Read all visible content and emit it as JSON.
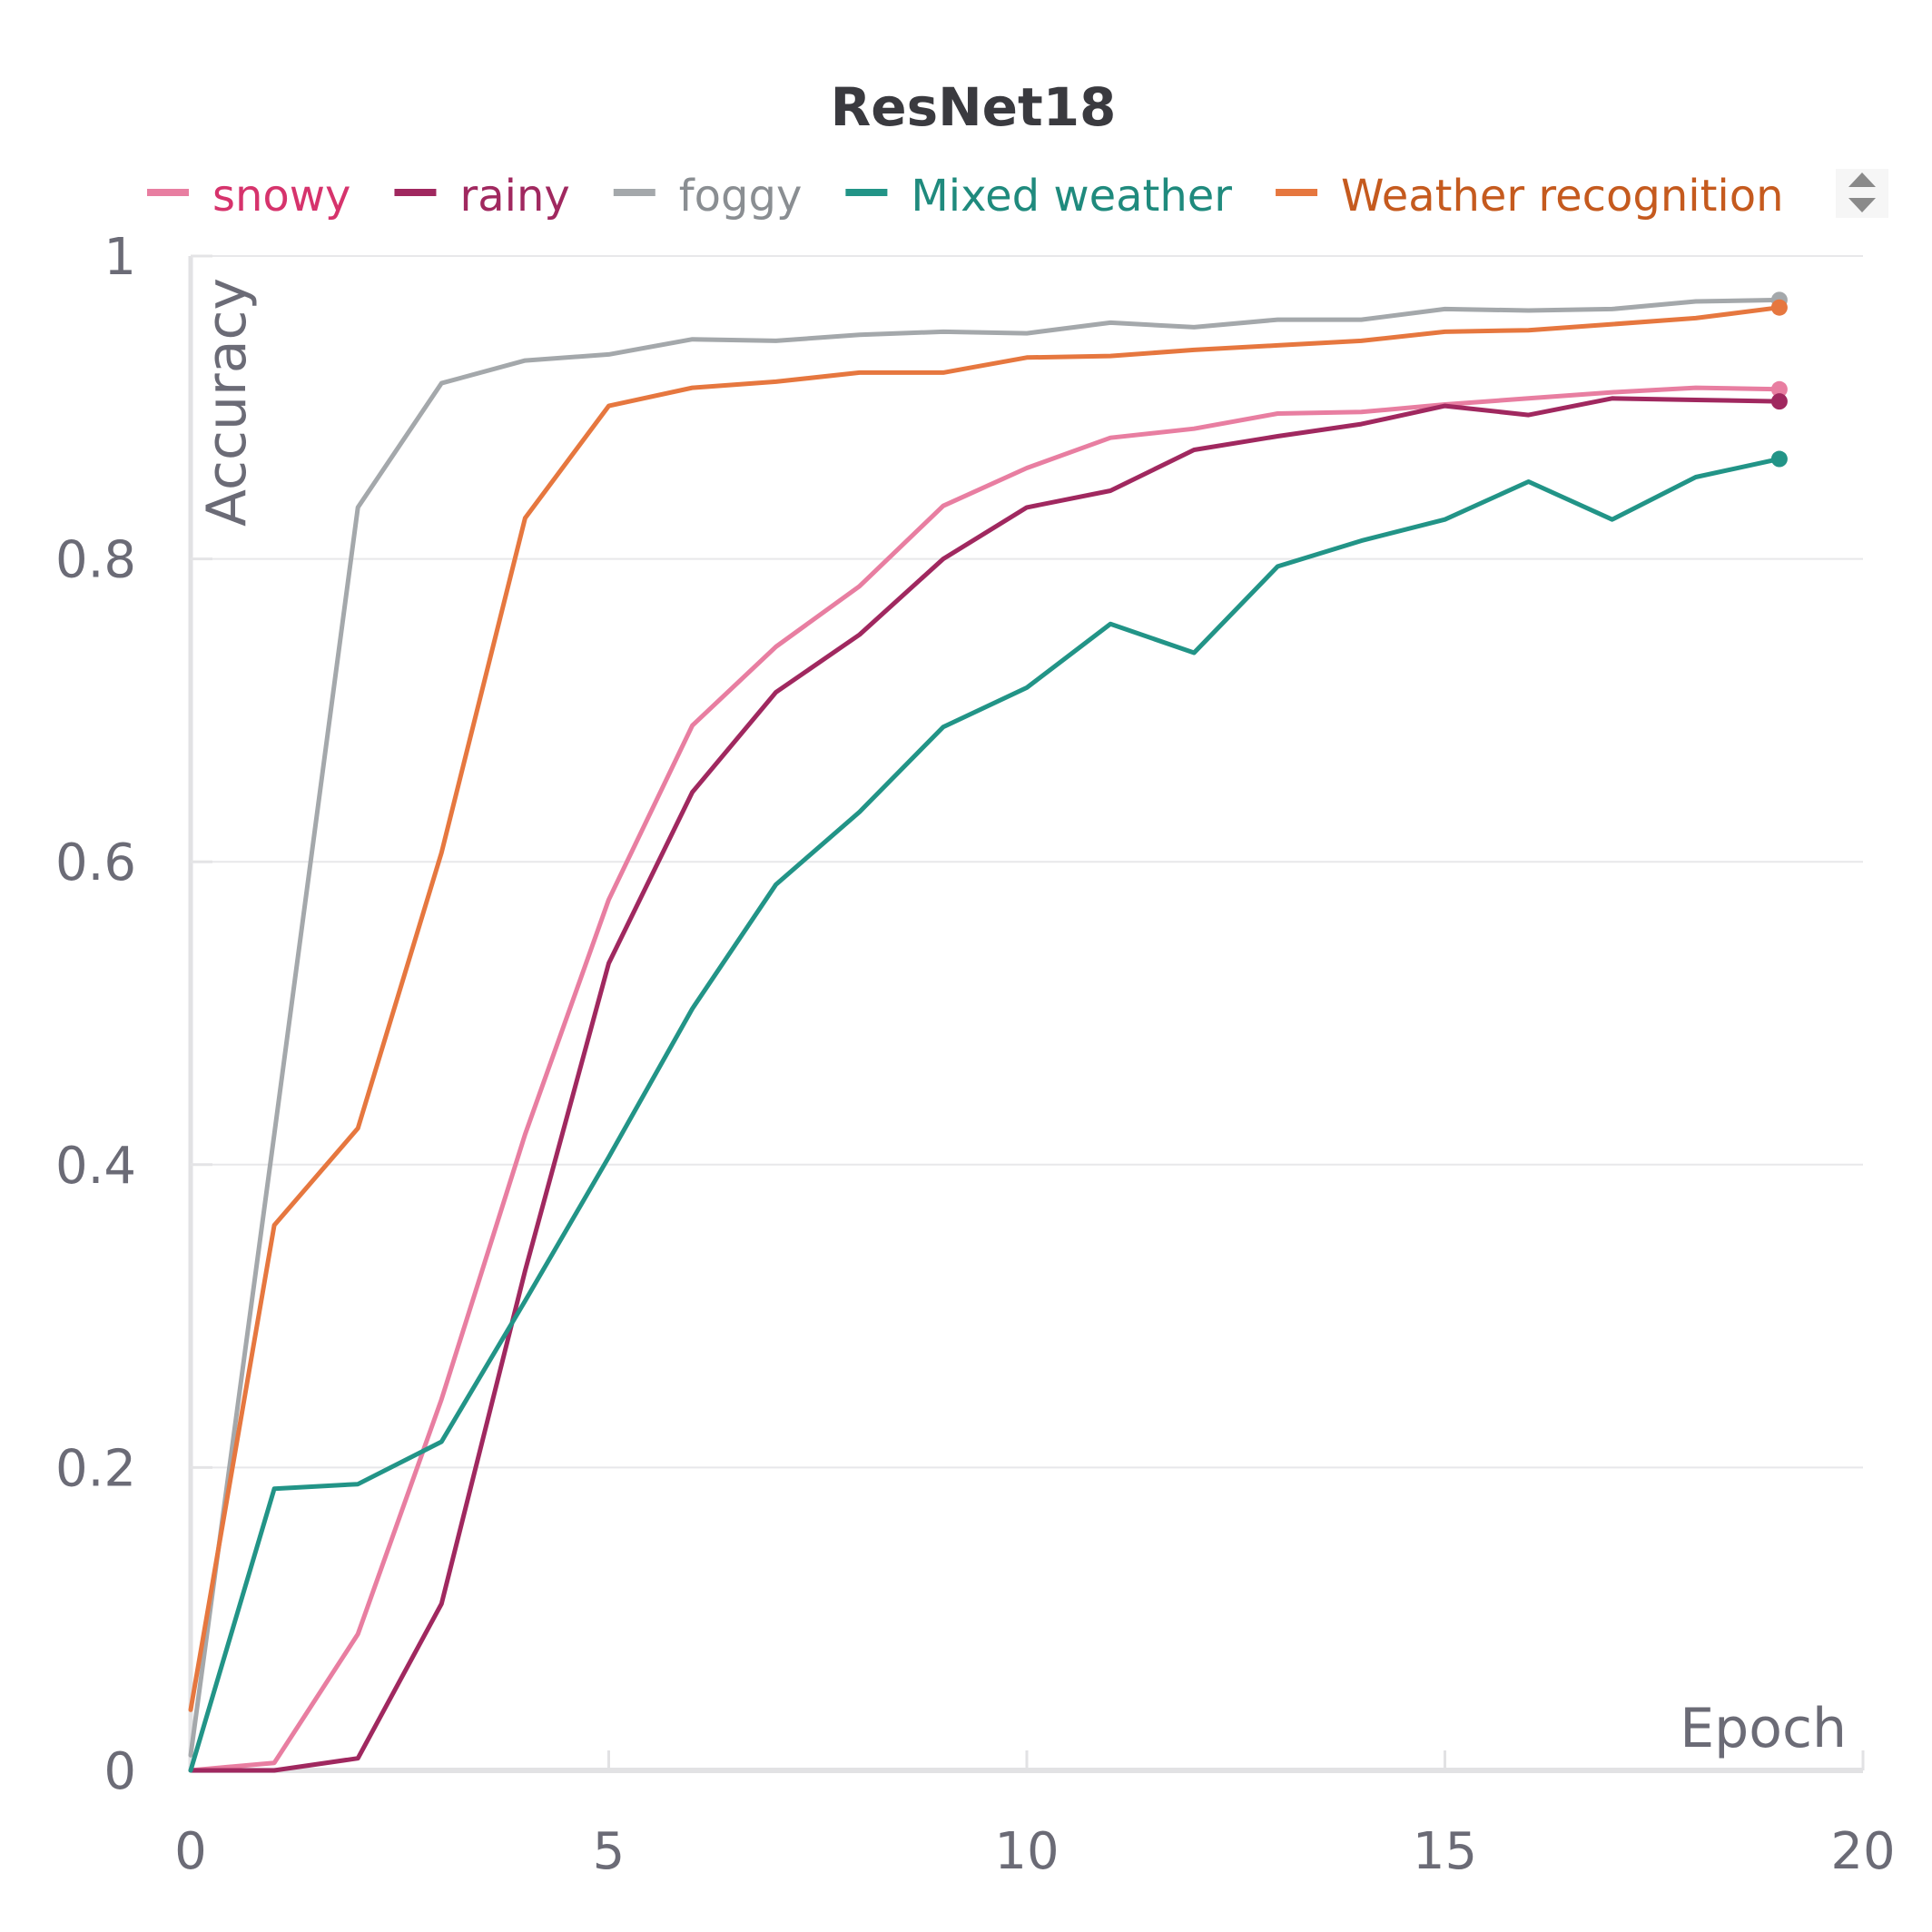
{
  "chart_data": {
    "type": "line",
    "title": "ResNet18",
    "xlabel": "Epoch",
    "ylabel": "Accuracy",
    "xlim": [
      0,
      20
    ],
    "ylim": [
      0,
      1
    ],
    "xticks": [
      0,
      5,
      10,
      15,
      20
    ],
    "yticks": [
      0,
      0.2,
      0.4,
      0.6,
      0.8,
      1
    ],
    "ytick_labels": [
      "0",
      "0.2",
      "0.4",
      "0.6",
      "0.8",
      "1"
    ],
    "grid": true,
    "legend_position": "top",
    "x": [
      0,
      1,
      2,
      3,
      4,
      5,
      6,
      7,
      8,
      9,
      10,
      11,
      12,
      13,
      14,
      15,
      16,
      17,
      18,
      19
    ],
    "series": [
      {
        "name": "snowy",
        "color": "#e87ea1",
        "values": [
          0.0,
          0.005,
          0.09,
          0.245,
          0.42,
          0.575,
          0.69,
          0.742,
          0.782,
          0.835,
          0.86,
          0.88,
          0.886,
          0.896,
          0.897,
          0.902,
          0.906,
          0.91,
          0.913,
          0.912
        ]
      },
      {
        "name": "rainy",
        "color": "#a0285f",
        "values": [
          0.0,
          0.0,
          0.008,
          0.11,
          0.33,
          0.533,
          0.646,
          0.712,
          0.75,
          0.8,
          0.834,
          0.845,
          0.872,
          0.881,
          0.889,
          0.901,
          0.895,
          0.906,
          0.905,
          0.904
        ]
      },
      {
        "name": "foggy",
        "color": "#a4a8ab",
        "values": [
          0.01,
          0.42,
          0.834,
          0.916,
          0.931,
          0.935,
          0.945,
          0.944,
          0.948,
          0.95,
          0.949,
          0.956,
          0.953,
          0.958,
          0.958,
          0.965,
          0.964,
          0.965,
          0.97,
          0.971
        ]
      },
      {
        "name": "Mixed weather",
        "color": "#229487",
        "values": [
          0.0,
          0.186,
          0.189,
          0.217,
          0.31,
          0.405,
          0.503,
          0.585,
          0.633,
          0.689,
          0.715,
          0.757,
          0.738,
          0.795,
          0.812,
          0.826,
          0.851,
          0.826,
          0.854,
          0.866
        ]
      },
      {
        "name": "Weather recognition",
        "color": "#e6773f",
        "values": [
          0.04,
          0.36,
          0.424,
          0.606,
          0.827,
          0.901,
          0.913,
          0.917,
          0.923,
          0.923,
          0.933,
          0.934,
          0.938,
          0.941,
          0.944,
          0.95,
          0.951,
          0.955,
          0.959,
          0.966
        ]
      }
    ],
    "legend_text_colors": [
      "#d6336c",
      "#a0285f",
      "#8a8e92",
      "#1f8a7d",
      "#c55a1e"
    ]
  }
}
